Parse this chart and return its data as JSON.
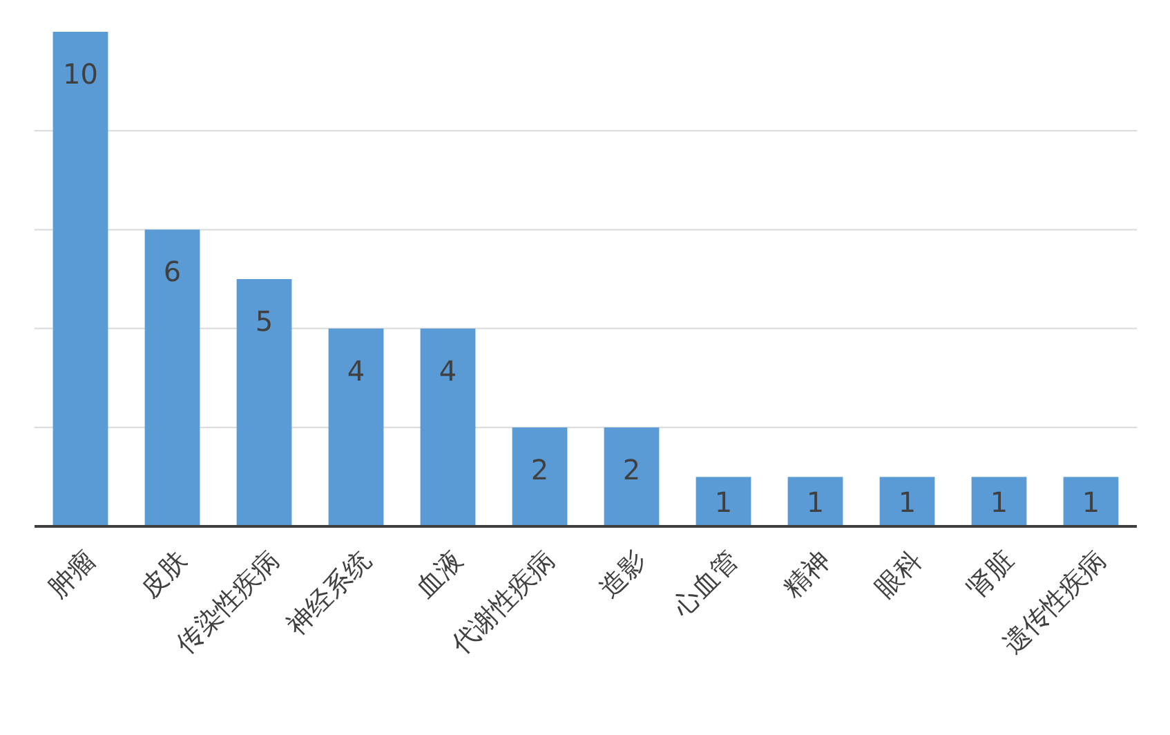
{
  "chart_data": {
    "type": "bar",
    "categories": [
      "肿瘤",
      "皮肤",
      "传染性疾病",
      "神经系统",
      "血液",
      "代谢性疾病",
      "造影",
      "心血管",
      "精神",
      "眼科",
      "肾脏",
      "遗传性疾病"
    ],
    "values": [
      10,
      6,
      5,
      4,
      4,
      2,
      2,
      1,
      1,
      1,
      1,
      1
    ],
    "color": "#5b9bd5",
    "ylim": [
      0,
      10
    ],
    "yticks": [
      {
        "value": 2,
        "label": null
      },
      {
        "value": 4,
        "label": null
      },
      {
        "value": 6,
        "label": null
      },
      {
        "value": 8,
        "label": null
      }
    ],
    "grid": "y",
    "data_labels": true,
    "tick_labels": "x"
  }
}
